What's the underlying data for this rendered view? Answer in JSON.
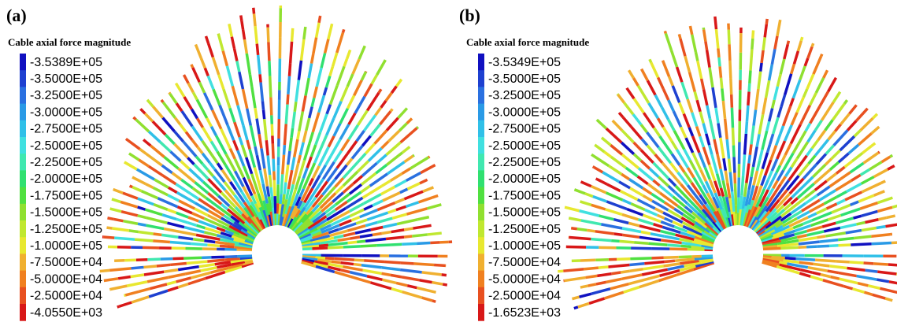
{
  "panels": [
    {
      "label": "(a)",
      "legend_title": "Cable axial force magnitude",
      "legend": [
        {
          "text": "-3.5389E+05",
          "color": "#1010c0"
        },
        {
          "text": "-3.5000E+05",
          "color": "#1e40d0"
        },
        {
          "text": "-3.2500E+05",
          "color": "#2a70e0"
        },
        {
          "text": "-3.0000E+05",
          "color": "#2a9ae6"
        },
        {
          "text": "-2.7500E+05",
          "color": "#30c0e8"
        },
        {
          "text": "-2.5000E+05",
          "color": "#40e0e0"
        },
        {
          "text": "-2.2500E+05",
          "color": "#40e8b0"
        },
        {
          "text": "-2.0000E+05",
          "color": "#30e070"
        },
        {
          "text": "-1.7500E+05",
          "color": "#50e040"
        },
        {
          "text": "-1.5000E+05",
          "color": "#90e030"
        },
        {
          "text": "-1.2500E+05",
          "color": "#c0e830"
        },
        {
          "text": "-1.0000E+05",
          "color": "#e8e830"
        },
        {
          "text": "-7.5000E+04",
          "color": "#f0b030"
        },
        {
          "text": "-5.0000E+04",
          "color": "#f08020"
        },
        {
          "text": "-2.5000E+04",
          "color": "#e85020"
        },
        {
          "text": "-4.0550E+03",
          "color": "#d81818"
        }
      ]
    },
    {
      "label": "(b)",
      "legend_title": "Cable axial force magnitude",
      "legend": [
        {
          "text": "-3.5349E+05",
          "color": "#1010c0"
        },
        {
          "text": "-3.5000E+05",
          "color": "#1e40d0"
        },
        {
          "text": "-3.2500E+05",
          "color": "#2a70e0"
        },
        {
          "text": "-3.0000E+05",
          "color": "#2a9ae6"
        },
        {
          "text": "-2.7500E+05",
          "color": "#30c0e8"
        },
        {
          "text": "-2.5000E+05",
          "color": "#40e0e0"
        },
        {
          "text": "-2.2500E+05",
          "color": "#40e8b0"
        },
        {
          "text": "-2.0000E+05",
          "color": "#30e070"
        },
        {
          "text": "-1.7500E+05",
          "color": "#50e040"
        },
        {
          "text": "-1.5000E+05",
          "color": "#90e030"
        },
        {
          "text": "-1.2500E+05",
          "color": "#c0e830"
        },
        {
          "text": "-1.0000E+05",
          "color": "#e8e830"
        },
        {
          "text": "-7.5000E+04",
          "color": "#f0b030"
        },
        {
          "text": "-5.0000E+04",
          "color": "#f08020"
        },
        {
          "text": "-2.5000E+04",
          "color": "#e85020"
        },
        {
          "text": "-1.6523E+03",
          "color": "#d81818"
        }
      ]
    }
  ]
}
